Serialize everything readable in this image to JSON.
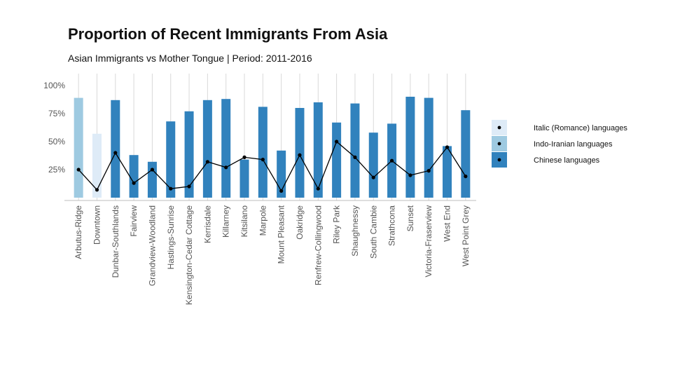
{
  "chart_data": {
    "type": "bar",
    "title": "Proportion of Recent Immigrants From Asia",
    "subtitle": "Asian Immigrants vs Mother Tongue | Period: 2011-2016",
    "xlabel": "",
    "ylabel": "",
    "ylim": [
      0,
      1
    ],
    "y_ticks": [
      "100%",
      "75%",
      "50%",
      "25%"
    ],
    "y_tick_values": [
      1.0,
      0.75,
      0.5,
      0.25
    ],
    "grid": "vertical",
    "categories": [
      "Arbutus-Ridge",
      "Downtown",
      "Dunbar-Southlands",
      "Fairview",
      "Grandview-Woodland",
      "Hastings-Sunrise",
      "Kensington-Cedar Cottage",
      "Kerrisdale",
      "Killarney",
      "Kitsilano",
      "Marpole",
      "Mount Pleasant",
      "Oakridge",
      "Renfrew-Collingwood",
      "Riley Park",
      "Shaughnessy",
      "South Cambie",
      "Strathcona",
      "Sunset",
      "Victoria-Fraserview",
      "West End",
      "West Point Grey"
    ],
    "bar_series": {
      "name": "Proportion of recent immigrants from Asia",
      "values": [
        0.89,
        0.57,
        0.87,
        0.38,
        0.32,
        0.68,
        0.77,
        0.87,
        0.88,
        0.34,
        0.81,
        0.42,
        0.8,
        0.85,
        0.67,
        0.84,
        0.58,
        0.66,
        0.9,
        0.89,
        0.46,
        0.78
      ],
      "language_group": [
        "Indo-Iranian languages",
        "Italic (Romance) languages",
        "Chinese languages",
        "Chinese languages",
        "Chinese languages",
        "Chinese languages",
        "Chinese languages",
        "Chinese languages",
        "Chinese languages",
        "Chinese languages",
        "Chinese languages",
        "Chinese languages",
        "Chinese languages",
        "Chinese languages",
        "Chinese languages",
        "Chinese languages",
        "Chinese languages",
        "Chinese languages",
        "Chinese languages",
        "Chinese languages",
        "Chinese languages",
        "Chinese languages"
      ]
    },
    "line_series": {
      "name": "Mother tongue",
      "values": [
        0.25,
        0.07,
        0.4,
        0.13,
        0.25,
        0.08,
        0.1,
        0.32,
        0.27,
        0.36,
        0.34,
        0.06,
        0.38,
        0.08,
        0.5,
        0.36,
        0.18,
        0.33,
        0.2,
        0.24,
        0.45,
        0.19
      ]
    },
    "legend": {
      "position": "right",
      "entries": [
        {
          "label": "Italic (Romance) languages",
          "color": "#deebf7"
        },
        {
          "label": "Indo-Iranian languages",
          "color": "#9ecae1"
        },
        {
          "label": "Chinese languages",
          "color": "#3182bd"
        }
      ]
    },
    "colors": {
      "Italic (Romance) languages": "#deebf7",
      "Indo-Iranian languages": "#9ecae1",
      "Chinese languages": "#3182bd",
      "line": "#000000",
      "grid": "#d9d9d9",
      "axis": "#bdbdbd"
    }
  }
}
